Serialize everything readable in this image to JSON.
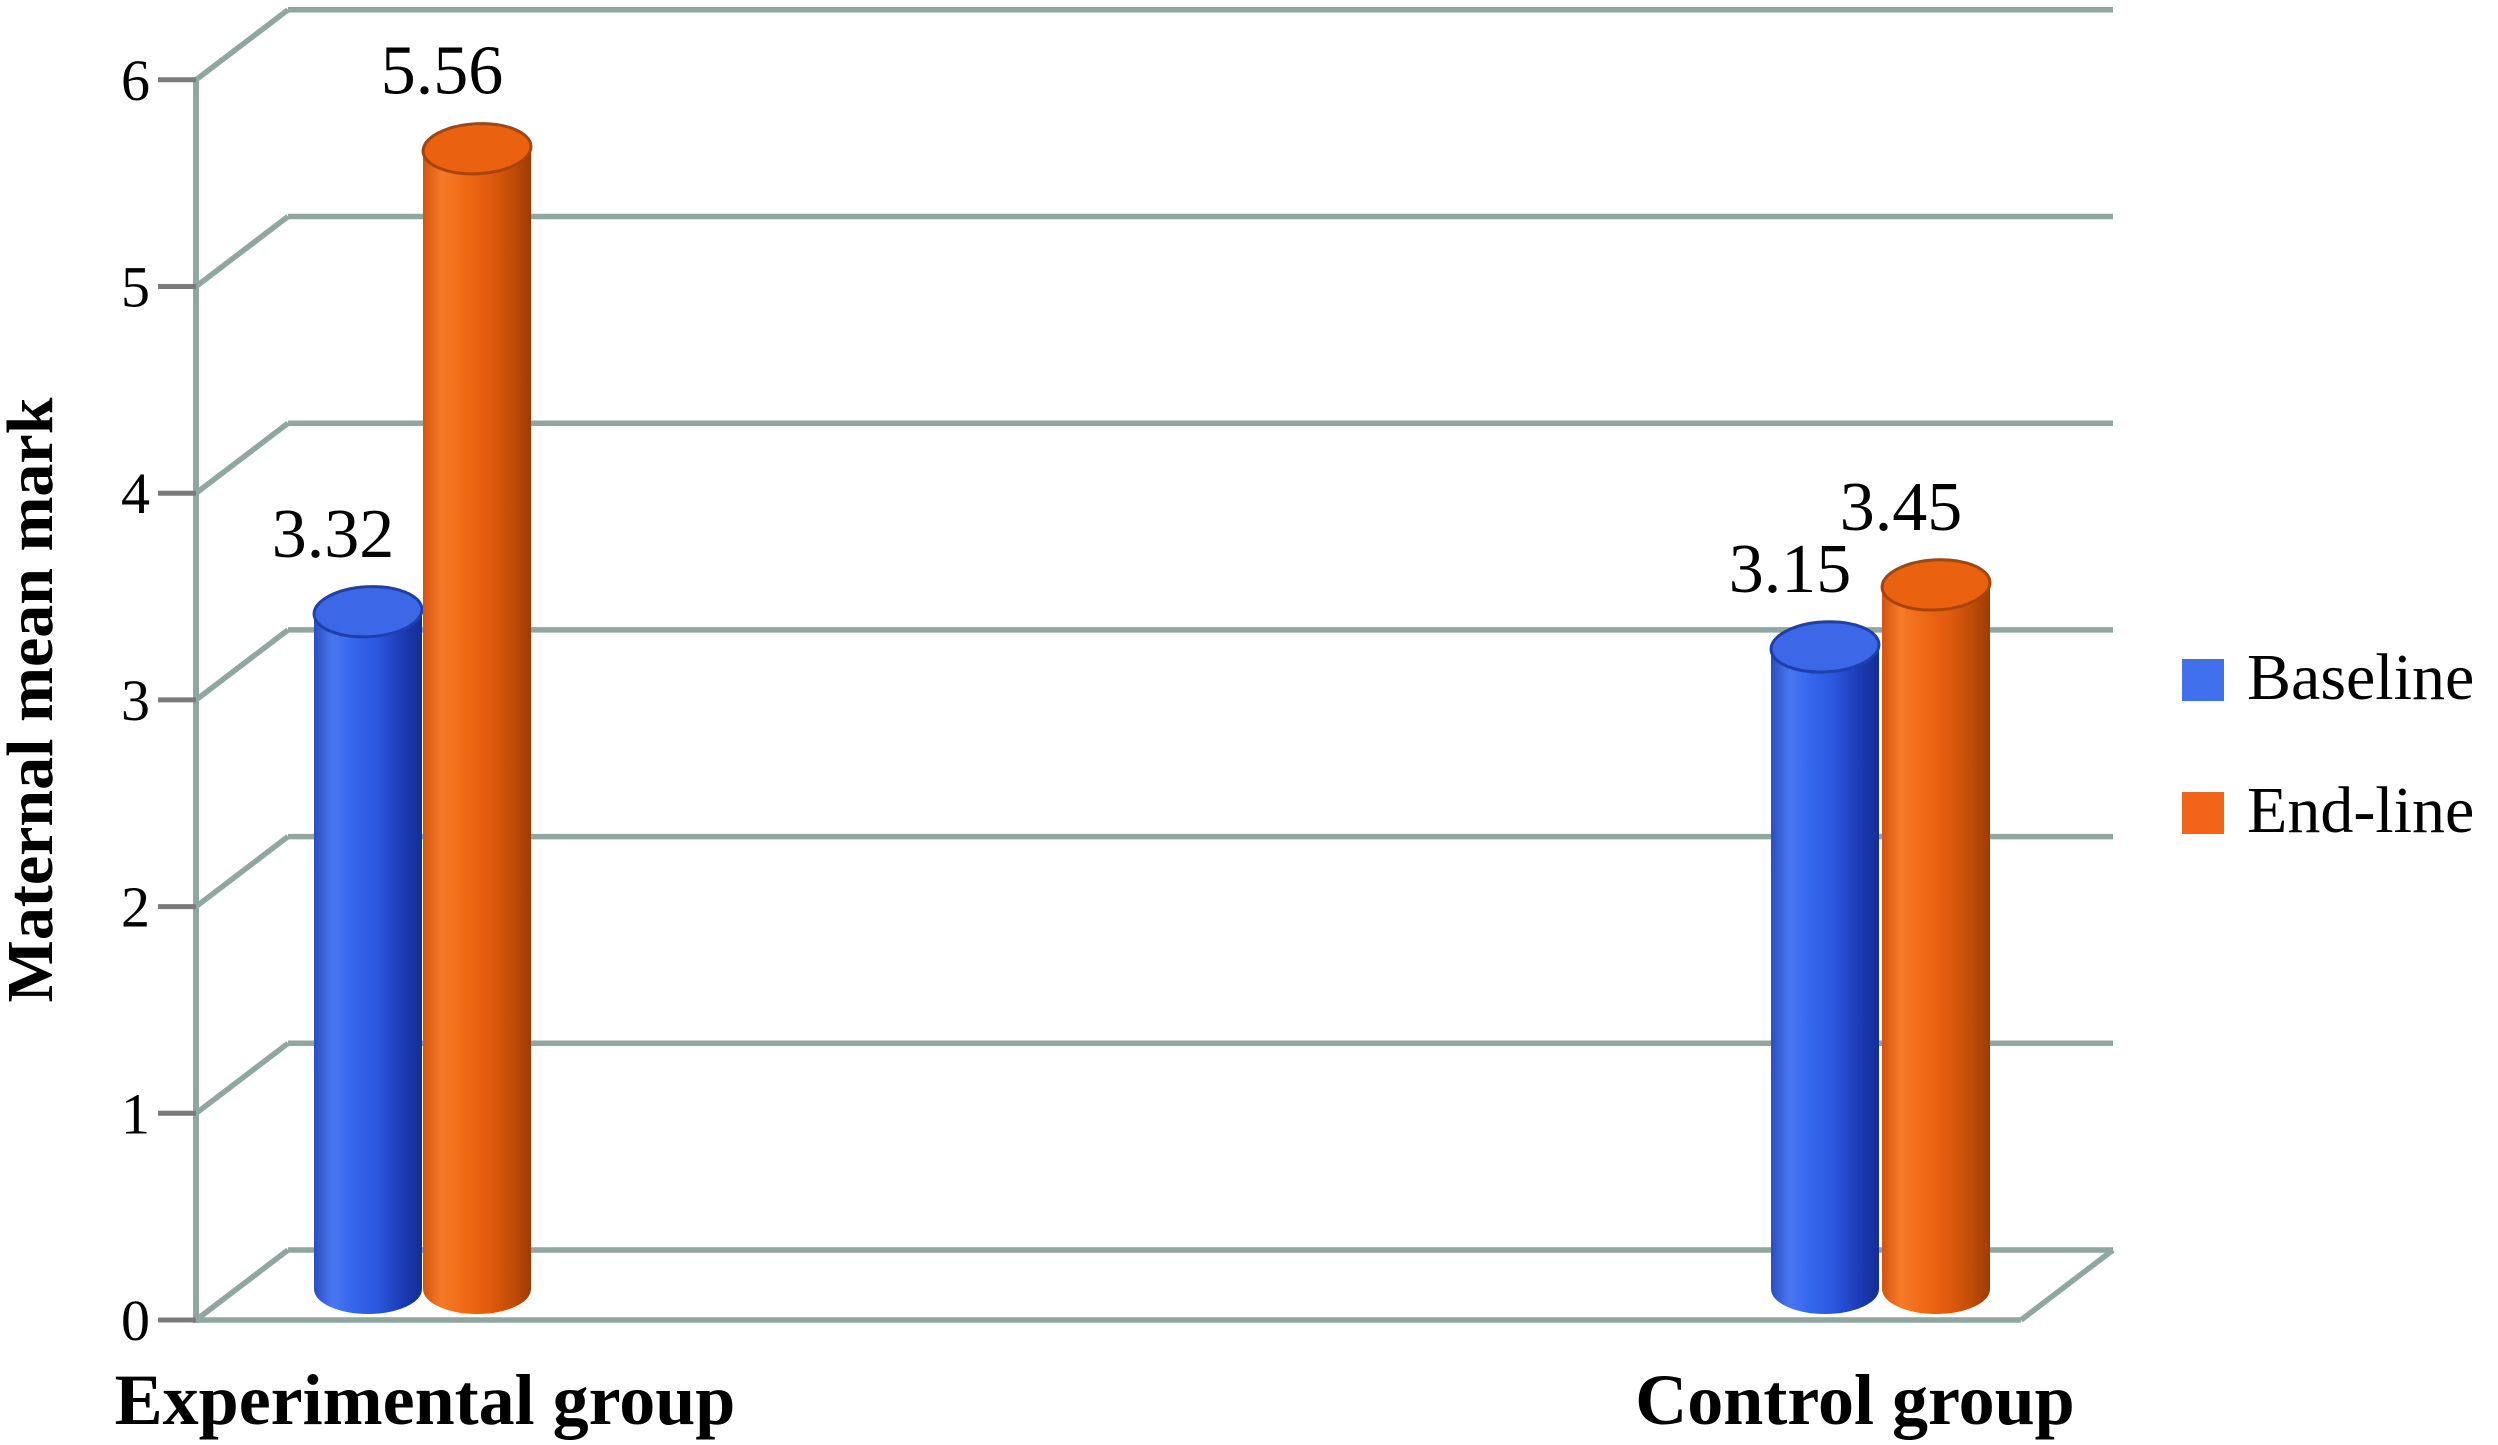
{
  "chart_data": {
    "type": "bar",
    "subtype": "3d-cylinder",
    "categories": [
      "Experimental group",
      "Control group"
    ],
    "series": [
      {
        "name": "Baseline",
        "color": "#3b63e0",
        "values": [
          3.32,
          3.15
        ],
        "labels": [
          "3.32",
          "3.15"
        ]
      },
      {
        "name": "End-line",
        "color": "#ee6014",
        "values": [
          5.56,
          3.45
        ],
        "labels": [
          "5.56",
          "3.45"
        ]
      }
    ],
    "title": "",
    "xlabel": "",
    "ylabel": "Maternal mean mark",
    "ylim": [
      0,
      6
    ],
    "yticks": [
      "0",
      "1",
      "2",
      "3",
      "4",
      "5",
      "6"
    ],
    "grid": true,
    "legend_position": "right"
  },
  "legend": {
    "items": [
      {
        "label": "Baseline",
        "color": "#4070ec"
      },
      {
        "label": "End-line",
        "color": "#f2641a"
      }
    ]
  },
  "colors": {
    "background": "#ffffff",
    "gridline": "#8fa6a1",
    "tick_mark": "#7b7b7b",
    "text": "#000000",
    "blue_body_dark": "#142e94",
    "blue_body_light": "#4a77f0",
    "orange_body_dark": "#9a3c06",
    "orange_body_light": "#f57a28"
  }
}
